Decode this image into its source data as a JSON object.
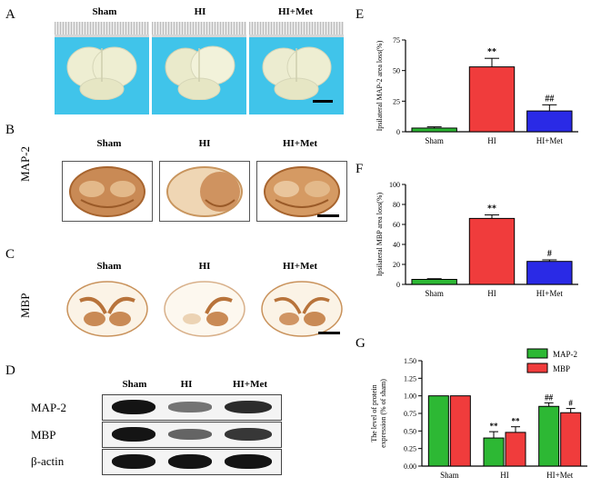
{
  "panels": {
    "A": "A",
    "B": "B",
    "C": "C",
    "D": "D",
    "E": "E",
    "F": "F",
    "G": "G"
  },
  "conditions": [
    "Sham",
    "HI",
    "HI+Met"
  ],
  "row_labels": {
    "B": "MAP-2",
    "C": "MBP"
  },
  "western_blot": {
    "columns": [
      "Sham",
      "HI",
      "HI+Met"
    ],
    "rows": [
      {
        "label": "MAP-2",
        "intensity": [
          1.0,
          0.4,
          0.85
        ]
      },
      {
        "label": "MBP",
        "intensity": [
          1.0,
          0.5,
          0.78
        ]
      },
      {
        "label": "β-actin",
        "intensity": [
          1.0,
          1.0,
          1.0
        ]
      }
    ]
  },
  "colors": {
    "sham": "#2db834",
    "hi": "#f03c3c",
    "met": "#2a2ae6",
    "legend_map2": "#2db834",
    "legend_mbp": "#f03c3c"
  },
  "chart_data": [
    {
      "id": "E",
      "type": "bar",
      "categories": [
        "Sham",
        "HI",
        "HI+Met"
      ],
      "values": [
        3,
        53,
        17
      ],
      "errors": [
        1,
        7,
        5
      ],
      "annotations": [
        "",
        "**",
        "##"
      ],
      "ylabel": "Ipsilateral MAP-2 area loss(%)",
      "ylim": [
        0,
        75
      ],
      "yticks": [
        0,
        25,
        50,
        75
      ]
    },
    {
      "id": "F",
      "type": "bar",
      "categories": [
        "Sham",
        "HI",
        "HI+Met"
      ],
      "values": [
        5,
        66,
        23
      ],
      "errors": [
        0.7,
        3.5,
        1.5
      ],
      "annotations": [
        "",
        "**",
        "#"
      ],
      "ylabel": "Ipsilateral MBP area loss(%)",
      "ylim": [
        0,
        100
      ],
      "yticks": [
        0,
        20,
        40,
        60,
        80,
        100
      ]
    },
    {
      "id": "G",
      "type": "bar",
      "categories": [
        "Sham",
        "HI",
        "HI+Met"
      ],
      "series": [
        {
          "name": "MAP-2",
          "values": [
            1.0,
            0.4,
            0.85
          ],
          "errors": [
            0,
            0.09,
            0.05
          ],
          "annotations": [
            "",
            "**",
            "##"
          ]
        },
        {
          "name": "MBP",
          "values": [
            1.0,
            0.48,
            0.76
          ],
          "errors": [
            0,
            0.08,
            0.06
          ],
          "annotations": [
            "",
            "**",
            "#"
          ]
        }
      ],
      "ylabel_line1": "The level of protein",
      "ylabel_line2": "expression (% of sham)",
      "ylim": [
        0,
        1.5
      ],
      "yticks": [
        "0.00",
        "0.25",
        "0.50",
        "0.75",
        "1.00",
        "1.25",
        "1.50"
      ],
      "legend": "top-right"
    }
  ]
}
